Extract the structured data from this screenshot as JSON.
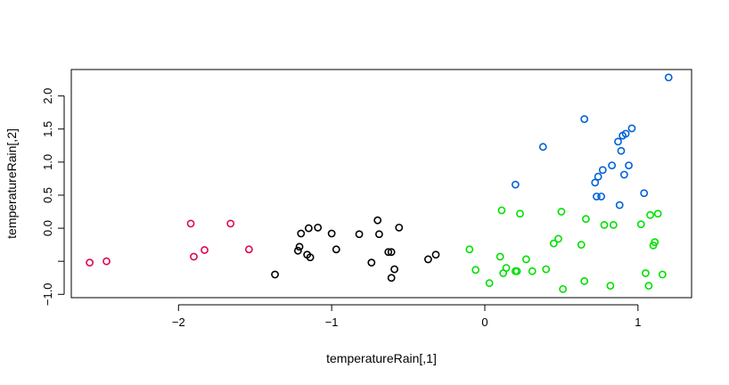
{
  "chart_data": {
    "type": "scatter",
    "title": "",
    "xlabel": "temperatureRain[,1]",
    "ylabel": "temperatureRain[,2]",
    "xlim": [
      -2.7,
      1.35
    ],
    "ylim": [
      -1.05,
      2.4
    ],
    "x_ticks": [
      -2,
      -1,
      0,
      1
    ],
    "y_ticks": [
      -1.0,
      -0.5,
      0.0,
      0.5,
      1.0,
      1.5,
      2.0
    ],
    "x_tick_labels": [
      "−2",
      "−1",
      "0",
      "1"
    ],
    "y_tick_labels": [
      "−1.0",
      "",
      "0.0",
      "0.5",
      "1.0",
      "1.5",
      "2.0"
    ],
    "grid": false,
    "legend": "none",
    "marker": "open-circle",
    "series": [
      {
        "color": "#DF0758",
        "points": [
          [
            -2.58,
            -0.52
          ],
          [
            -2.47,
            -0.5
          ],
          [
            -1.92,
            0.07
          ],
          [
            -1.9,
            -0.43
          ],
          [
            -1.83,
            -0.33
          ],
          [
            -1.66,
            0.07
          ],
          [
            -1.54,
            -0.32
          ]
        ]
      },
      {
        "color": "#000000",
        "points": [
          [
            -1.37,
            -0.7
          ],
          [
            -1.22,
            -0.34
          ],
          [
            -1.21,
            -0.28
          ],
          [
            -1.2,
            -0.08
          ],
          [
            -1.16,
            -0.4
          ],
          [
            -1.15,
            0.0
          ],
          [
            -1.14,
            -0.44
          ],
          [
            -1.09,
            0.01
          ],
          [
            -1.0,
            -0.08
          ],
          [
            -0.97,
            -0.32
          ],
          [
            -0.82,
            -0.09
          ],
          [
            -0.74,
            -0.52
          ],
          [
            -0.7,
            0.12
          ],
          [
            -0.69,
            -0.09
          ],
          [
            -0.63,
            -0.36
          ],
          [
            -0.61,
            -0.75
          ],
          [
            -0.61,
            -0.36
          ],
          [
            -0.59,
            -0.62
          ],
          [
            -0.56,
            0.01
          ],
          [
            -0.37,
            -0.47
          ],
          [
            -0.32,
            -0.4
          ]
        ]
      },
      {
        "color": "#00E000",
        "points": [
          [
            -0.1,
            -0.32
          ],
          [
            -0.06,
            -0.63
          ],
          [
            0.03,
            -0.83
          ],
          [
            0.1,
            -0.43
          ],
          [
            0.11,
            0.27
          ],
          [
            0.12,
            -0.68
          ],
          [
            0.14,
            -0.6
          ],
          [
            0.2,
            -0.65
          ],
          [
            0.21,
            -0.65
          ],
          [
            0.23,
            0.22
          ],
          [
            0.27,
            -0.47
          ],
          [
            0.31,
            -0.65
          ],
          [
            0.4,
            -0.62
          ],
          [
            0.45,
            -0.23
          ],
          [
            0.48,
            -0.16
          ],
          [
            0.5,
            0.25
          ],
          [
            0.51,
            -0.92
          ],
          [
            0.63,
            -0.25
          ],
          [
            0.65,
            -0.8
          ],
          [
            0.66,
            0.14
          ],
          [
            0.78,
            0.05
          ],
          [
            0.82,
            -0.87
          ],
          [
            0.84,
            0.05
          ],
          [
            1.02,
            0.06
          ],
          [
            1.05,
            -0.68
          ],
          [
            1.07,
            -0.87
          ],
          [
            1.08,
            0.2
          ],
          [
            1.1,
            -0.26
          ],
          [
            1.11,
            -0.21
          ],
          [
            1.13,
            0.22
          ],
          [
            1.16,
            -0.7
          ]
        ]
      },
      {
        "color": "#0061D9",
        "points": [
          [
            0.2,
            0.66
          ],
          [
            0.38,
            1.23
          ],
          [
            0.65,
            1.65
          ],
          [
            0.72,
            0.69
          ],
          [
            0.73,
            0.48
          ],
          [
            0.74,
            0.78
          ],
          [
            0.76,
            0.48
          ],
          [
            0.77,
            0.88
          ],
          [
            0.83,
            0.95
          ],
          [
            0.87,
            1.31
          ],
          [
            0.88,
            0.35
          ],
          [
            0.89,
            1.17
          ],
          [
            0.9,
            1.4
          ],
          [
            0.91,
            0.81
          ],
          [
            0.92,
            1.43
          ],
          [
            0.94,
            0.95
          ],
          [
            0.96,
            1.51
          ],
          [
            1.04,
            0.53
          ],
          [
            1.2,
            2.28
          ]
        ]
      }
    ]
  }
}
